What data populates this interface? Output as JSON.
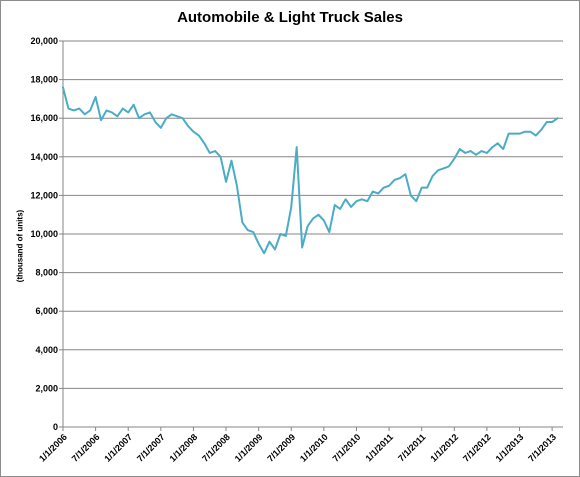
{
  "chart_data": {
    "type": "line",
    "title": "Automobile & Light Truck Sales",
    "ylabel": "(thousand of units)",
    "xlabel": "",
    "ylim": [
      0,
      20000
    ],
    "y_ticks": [
      "0",
      "2,000",
      "4,000",
      "6,000",
      "8,000",
      "10,000",
      "12,000",
      "14,000",
      "16,000",
      "18,000",
      "20,000"
    ],
    "x_tick_labels": [
      "1/1/2006",
      "7/1/2006",
      "1/1/2007",
      "7/1/2007",
      "1/1/2008",
      "7/1/2008",
      "1/1/2009",
      "7/1/2009",
      "1/1/2010",
      "7/1/2010",
      "1/1/2011",
      "7/1/2011",
      "1/1/2012",
      "7/1/2012",
      "1/1/2013",
      "7/1/2013"
    ],
    "grid": "horizontal",
    "legend": "none",
    "line_color": "#4bacc6",
    "x_start": "2006-01",
    "x_end": "2013-09",
    "series": [
      {
        "values": [
          17600,
          16500,
          16400,
          16500,
          16200,
          16400,
          17100,
          15900,
          16400,
          16300,
          16100,
          16500,
          16300,
          16700,
          16000,
          16200,
          16300,
          15800,
          15500,
          16000,
          16200,
          16100,
          16000,
          15600,
          15300,
          15100,
          14700,
          14200,
          14300,
          14000,
          12700,
          13800,
          12500,
          10600,
          10200,
          10100,
          9500,
          9000,
          9600,
          9200,
          10000,
          9900,
          11400,
          14500,
          9300,
          10400,
          10800,
          11000,
          10700,
          10100,
          11500,
          11300,
          11800,
          11400,
          11700,
          11800,
          11700,
          12200,
          12100,
          12400,
          12500,
          12800,
          12900,
          13100,
          12000,
          11700,
          12400,
          12400,
          13000,
          13300,
          13400,
          13500,
          13900,
          14400,
          14200,
          14300,
          14100,
          14300,
          14200,
          14500,
          14700,
          14400,
          15200,
          15200,
          15200,
          15300,
          15300,
          15100,
          15400,
          15800,
          15800,
          16000
        ]
      }
    ]
  }
}
